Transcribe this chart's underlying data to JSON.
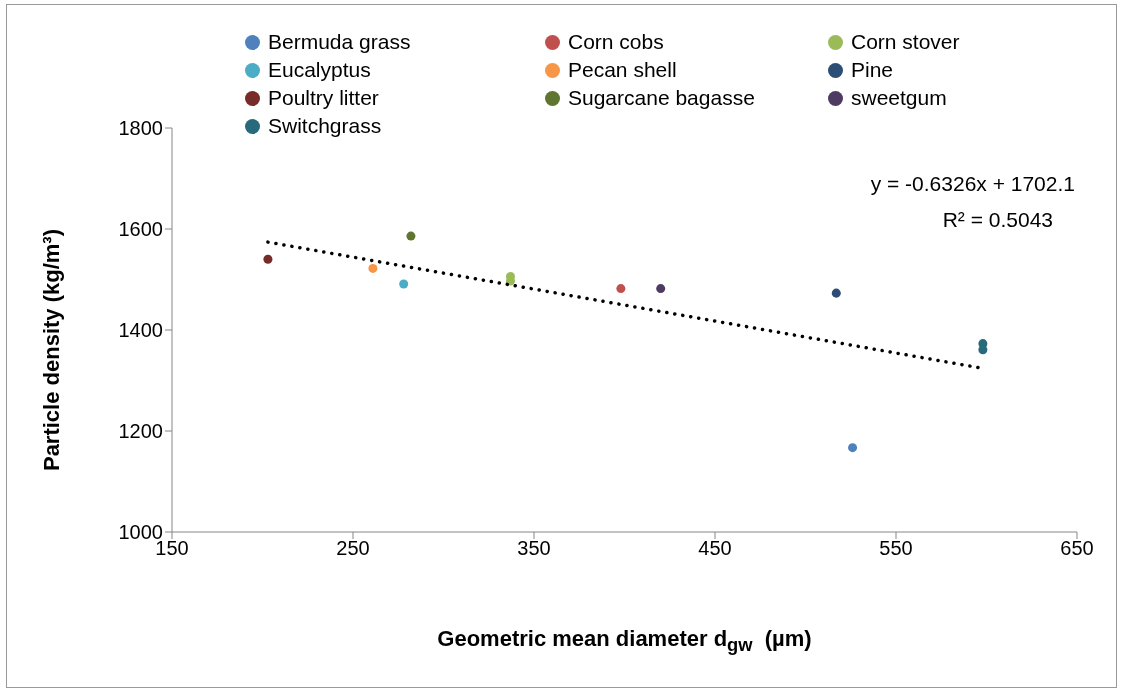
{
  "chart_data": {
    "type": "scatter",
    "xlabel": "Geometric mean diameter d$_{gw}$  (µm)",
    "ylabel": "Particle density (kg/m³)",
    "xlim": [
      150,
      650
    ],
    "xticks": [
      150,
      250,
      350,
      450,
      550,
      650
    ],
    "ylim": [
      1000,
      1800
    ],
    "yticks": [
      1000,
      1200,
      1400,
      1600,
      1800
    ],
    "legend": "top",
    "marker": "circle",
    "annotations": [
      "y = -0.6326x + 1702.1",
      "R² = 0.5043"
    ],
    "series": [
      {
        "name": "Bermuda grass",
        "color": "#4f81bd",
        "x": [
          526
        ],
        "values": [
          1167
        ]
      },
      {
        "name": "Corn cobs",
        "color": "#c0504d",
        "x": [
          398
        ],
        "values": [
          1482
        ]
      },
      {
        "name": "Corn stover",
        "color": "#9bbb59",
        "x": [
          337,
          337
        ],
        "values": [
          1506,
          1497
        ]
      },
      {
        "name": "Eucalyptus",
        "color": "#4bacc6",
        "x": [
          278
        ],
        "values": [
          1491
        ]
      },
      {
        "name": "Pecan shell",
        "color": "#f79646",
        "x": [
          261
        ],
        "values": [
          1522
        ]
      },
      {
        "name": "Pine",
        "color": "#2c4d75",
        "x": [
          517
        ],
        "values": [
          1473
        ]
      },
      {
        "name": "Poultry litter",
        "color": "#772c2a",
        "x": [
          203
        ],
        "values": [
          1540
        ]
      },
      {
        "name": "Sugarcane bagasse",
        "color": "#5f7530",
        "x": [
          282
        ],
        "values": [
          1586
        ]
      },
      {
        "name": "sweetgum",
        "color": "#4d3b62",
        "x": [
          420
        ],
        "values": [
          1482
        ]
      },
      {
        "name": "Switchgrass",
        "color": "#276a7c",
        "x": [
          598,
          598
        ],
        "values": [
          1373,
          1361
        ]
      },
      {
        "type": "line",
        "color": "#000000",
        "line_style": "dotted",
        "marker": "none",
        "x": [
          203,
          598
        ],
        "values": [
          1574,
          1324
        ]
      }
    ]
  }
}
